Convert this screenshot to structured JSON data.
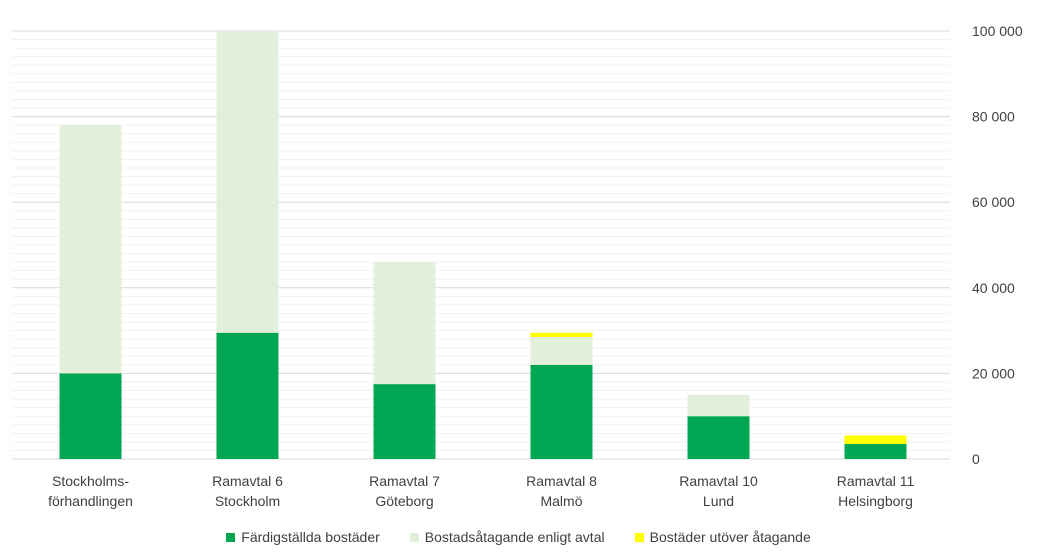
{
  "chart_data": {
    "type": "bar",
    "stacked": true,
    "categories": [
      [
        "Stockholms-",
        "förhandlingen"
      ],
      [
        "Ramavtal 6",
        "Stockholm"
      ],
      [
        "Ramavtal 7",
        "Göteborg"
      ],
      [
        "Ramavtal 8",
        "Malmö"
      ],
      [
        "Ramavtal 10",
        "Lund"
      ],
      [
        "Ramavtal 11",
        "Helsingborg"
      ]
    ],
    "series": [
      {
        "name": "Färdigställda bostäder",
        "color": "#00A651",
        "values": [
          20000,
          29500,
          17500,
          22000,
          10000,
          3500
        ]
      },
      {
        "name": "Bostadsåtagande enligt avtal",
        "color": "#E2EFDA",
        "values": [
          58000,
          70500,
          28500,
          6500,
          5000,
          0
        ]
      },
      {
        "name": "Bostäder utöver åtagande",
        "color": "#FFFF00",
        "values": [
          0,
          0,
          0,
          1000,
          0,
          2000
        ]
      }
    ],
    "yaxis": {
      "position": "right",
      "min": 0,
      "max": 100000,
      "major_ticks": [
        0,
        20000,
        40000,
        60000,
        80000,
        100000
      ],
      "tick_labels": [
        "0",
        "20 000",
        "40 000",
        "60 000",
        "80 000",
        "100 000"
      ]
    },
    "grid": true,
    "legend": "bottom"
  }
}
